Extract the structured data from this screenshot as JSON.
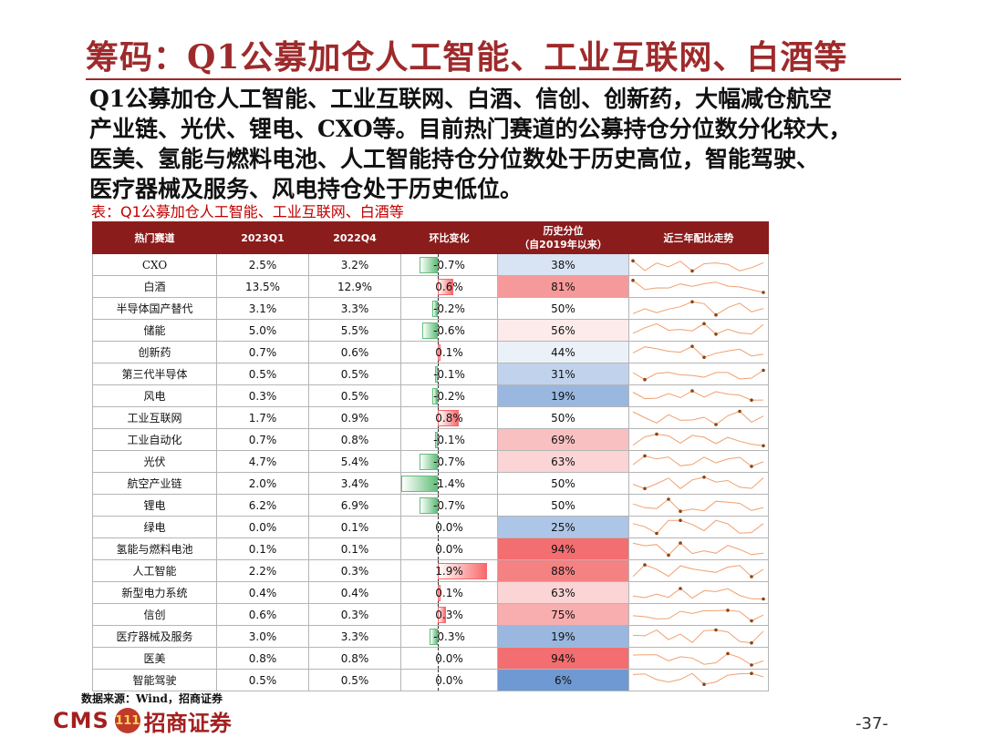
{
  "title": "筹码：Q1公募加仓人工智能、工业互联网、白酒等",
  "paragraph": [
    "Q1公募加仓人工智能、工业互联网、白酒、信创、创新药，大幅减仓航空",
    "产业链、光伏、锂电、CXO等。目前热门赛道的公募持仓分位数分化较大，",
    "医美、氢能与燃料电池、人工智能持仓分位数处于历史高位，智能驾驶、",
    "医疗器械及服务、风电持仓处于历史低位。"
  ],
  "caption": "表：Q1公募加仓人工智能、工业互联网、白酒等",
  "table": {
    "headers": [
      "热门赛道",
      "2023Q1",
      "2022Q4",
      "环比变化",
      "历史分位",
      "（自2019年以来）",
      "近三年配比走势"
    ],
    "rows": [
      {
        "name": "CXO",
        "q1": "2.5%",
        "q4": "3.2%",
        "chg": "-0.7%",
        "chg_value": -0.7,
        "pct": "38%",
        "pct_value": 38
      },
      {
        "name": "白酒",
        "q1": "13.5%",
        "q4": "12.9%",
        "chg": "0.6%",
        "chg_value": 0.6,
        "pct": "81%",
        "pct_value": 81
      },
      {
        "name": "半导体国产替代",
        "q1": "3.1%",
        "q4": "3.3%",
        "chg": "-0.2%",
        "chg_value": -0.2,
        "pct": "50%",
        "pct_value": 50
      },
      {
        "name": "储能",
        "q1": "5.0%",
        "q4": "5.5%",
        "chg": "-0.6%",
        "chg_value": -0.6,
        "pct": "56%",
        "pct_value": 56
      },
      {
        "name": "创新药",
        "q1": "0.7%",
        "q4": "0.6%",
        "chg": "0.1%",
        "chg_value": 0.1,
        "pct": "44%",
        "pct_value": 44
      },
      {
        "name": "第三代半导体",
        "q1": "0.5%",
        "q4": "0.5%",
        "chg": "-0.1%",
        "chg_value": -0.1,
        "pct": "31%",
        "pct_value": 31
      },
      {
        "name": "风电",
        "q1": "0.3%",
        "q4": "0.5%",
        "chg": "-0.2%",
        "chg_value": -0.2,
        "pct": "19%",
        "pct_value": 19
      },
      {
        "name": "工业互联网",
        "q1": "1.7%",
        "q4": "0.9%",
        "chg": "0.8%",
        "chg_value": 0.8,
        "pct": "50%",
        "pct_value": 50
      },
      {
        "name": "工业自动化",
        "q1": "0.7%",
        "q4": "0.8%",
        "chg": "-0.1%",
        "chg_value": -0.1,
        "pct": "69%",
        "pct_value": 69
      },
      {
        "name": "光伏",
        "q1": "4.7%",
        "q4": "5.4%",
        "chg": "-0.7%",
        "chg_value": -0.7,
        "pct": "63%",
        "pct_value": 63
      },
      {
        "name": "航空产业链",
        "q1": "2.0%",
        "q4": "3.4%",
        "chg": "-1.4%",
        "chg_value": -1.4,
        "pct": "50%",
        "pct_value": 50
      },
      {
        "name": "锂电",
        "q1": "6.2%",
        "q4": "6.9%",
        "chg": "-0.7%",
        "chg_value": -0.7,
        "pct": "50%",
        "pct_value": 50
      },
      {
        "name": "绿电",
        "q1": "0.0%",
        "q4": "0.1%",
        "chg": "0.0%",
        "chg_value": 0.0,
        "pct": "25%",
        "pct_value": 25
      },
      {
        "name": "氢能与燃料电池",
        "q1": "0.1%",
        "q4": "0.1%",
        "chg": "0.0%",
        "chg_value": 0.0,
        "pct": "94%",
        "pct_value": 94
      },
      {
        "name": "人工智能",
        "q1": "2.2%",
        "q4": "0.3%",
        "chg": "1.9%",
        "chg_value": 1.9,
        "pct": "88%",
        "pct_value": 88
      },
      {
        "name": "新型电力系统",
        "q1": "0.4%",
        "q4": "0.4%",
        "chg": "0.1%",
        "chg_value": 0.1,
        "pct": "63%",
        "pct_value": 63
      },
      {
        "name": "信创",
        "q1": "0.6%",
        "q4": "0.3%",
        "chg": "0.3%",
        "chg_value": 0.3,
        "pct": "75%",
        "pct_value": 75
      },
      {
        "name": "医疗器械及服务",
        "q1": "3.0%",
        "q4": "3.3%",
        "chg": "-0.3%",
        "chg_value": -0.3,
        "pct": "19%",
        "pct_value": 19
      },
      {
        "name": "医美",
        "q1": "0.8%",
        "q4": "0.8%",
        "chg": "0.0%",
        "chg_value": 0.0,
        "pct": "94%",
        "pct_value": 94
      },
      {
        "name": "智能驾驶",
        "q1": "0.5%",
        "q4": "0.5%",
        "chg": "0.0%",
        "chg_value": 0.0,
        "pct": "6%",
        "pct_value": 6
      }
    ]
  },
  "colors": {
    "accent": "#9e2a2b",
    "header_bg": "#8b1c1c",
    "neg_bar": "#63be7b",
    "pos_bar": "#f8696b",
    "sparkline": "#f0a070",
    "sparkline_marker": "#8b4513"
  },
  "source": "数据来源：Wind，招商证券",
  "logo": {
    "text_en": "CMS",
    "badge_text": "111",
    "text_cn": "招商证券"
  },
  "page_number": "-37-"
}
